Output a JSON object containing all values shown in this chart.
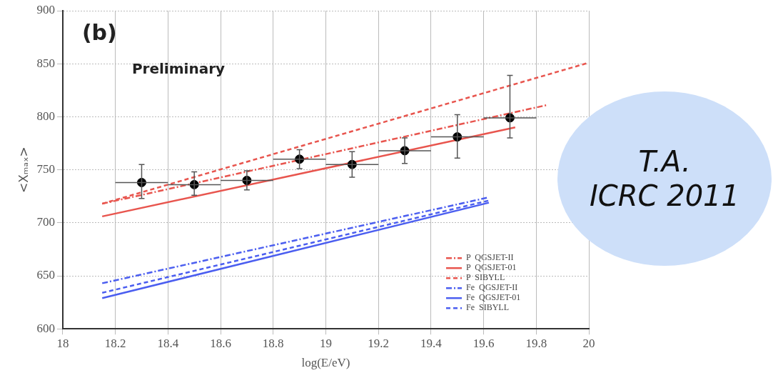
{
  "chart_data": {
    "type": "line",
    "xlabel": "log(E/eV)",
    "ylabel": "<Xₘₐₓ>",
    "annotations": [
      "(b)",
      "Preliminary",
      "T.A.\nICRC 2011"
    ],
    "xlim": [
      18,
      20
    ],
    "xticks": [
      18,
      18.2,
      18.4,
      18.6,
      18.8,
      19,
      19.2,
      19.4,
      19.6,
      19.8,
      20
    ],
    "ylim": [
      600,
      900
    ],
    "yticks": [
      600,
      650,
      700,
      750,
      800,
      850,
      900
    ],
    "grid": true,
    "legend": "bottom right",
    "series": [
      {
        "name": "P  QGSJET-II",
        "color": "#e8554e",
        "line_style": "dashdot",
        "x": [
          18.15,
          19.84
        ],
        "values": [
          718,
          811
        ]
      },
      {
        "name": "P  QGSJET-01",
        "color": "#e8554e",
        "line_style": "solid",
        "x": [
          18.15,
          19.72
        ],
        "values": [
          706,
          790
        ]
      },
      {
        "name": "P  SIBYLL",
        "color": "#e8554e",
        "line_style": "dashed",
        "x": [
          18.15,
          20
        ],
        "values": [
          718,
          851
        ]
      },
      {
        "name": "Fe  QGSJET-II",
        "color": "#4b5ef0",
        "line_style": "dashdot",
        "x": [
          18.15,
          19.62
        ],
        "values": [
          643,
          724
        ]
      },
      {
        "name": "Fe  QGSJET-01",
        "color": "#4b5ef0",
        "line_style": "solid",
        "x": [
          18.15,
          19.62
        ],
        "values": [
          629,
          719
        ]
      },
      {
        "name": "Fe  SIBYLL",
        "color": "#4b5ef0",
        "line_style": "dashed",
        "x": [
          18.15,
          19.62
        ],
        "values": [
          634,
          721
        ]
      },
      {
        "type": "scatter",
        "color": "#000000",
        "marker": "circle",
        "x": [
          18.3,
          18.5,
          18.7,
          18.9,
          19.1,
          19.3,
          19.5,
          19.7
        ],
        "values": [
          738,
          736,
          740,
          760,
          755,
          768,
          781,
          799
        ],
        "xerrors": [
          0.1,
          0.1,
          0.1,
          0.1,
          0.1,
          0.1,
          0.1,
          0.1
        ],
        "errors": [
          [
            723,
            755
          ],
          [
            726,
            748
          ],
          [
            731,
            749
          ],
          [
            751,
            769
          ],
          [
            743,
            767
          ],
          [
            756,
            780
          ],
          [
            761,
            802
          ],
          [
            780,
            839
          ]
        ]
      }
    ]
  }
}
